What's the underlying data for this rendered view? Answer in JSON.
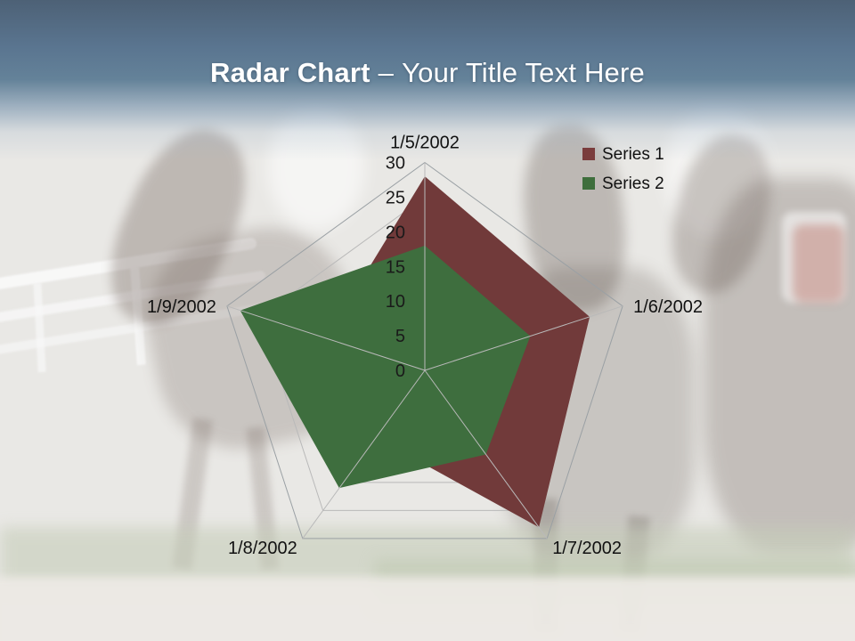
{
  "title": {
    "bold": "Radar Chart",
    "dash": "–",
    "regular": "Your Title Text Here"
  },
  "legend": {
    "items": [
      {
        "label": "Series 1",
        "color": "#7A3C3C"
      },
      {
        "label": "Series 2",
        "color": "#3E6E3C"
      }
    ]
  },
  "chart_data": {
    "type": "radar",
    "categories": [
      "1/5/2002",
      "1/6/2002",
      "1/7/2002",
      "1/8/2002",
      "1/9/2002"
    ],
    "series": [
      {
        "name": "Series 1",
        "fill": "#713A3A",
        "values": [
          28,
          25,
          28,
          12,
          15
        ]
      },
      {
        "name": "Series 2",
        "fill": "#3E6E3E",
        "values": [
          18,
          16,
          15,
          21,
          28
        ]
      }
    ],
    "r_axis": {
      "min": 0,
      "max": 30,
      "step": 5,
      "tick_labels": [
        "0",
        "5",
        "10",
        "15",
        "20",
        "25",
        "30"
      ]
    },
    "gridlines": true,
    "legend_position": "top-right",
    "colors": {
      "grid": "#b9b9b9",
      "outer_ring": "#9aa0a4",
      "axis_text": "#1a1a1a"
    }
  }
}
